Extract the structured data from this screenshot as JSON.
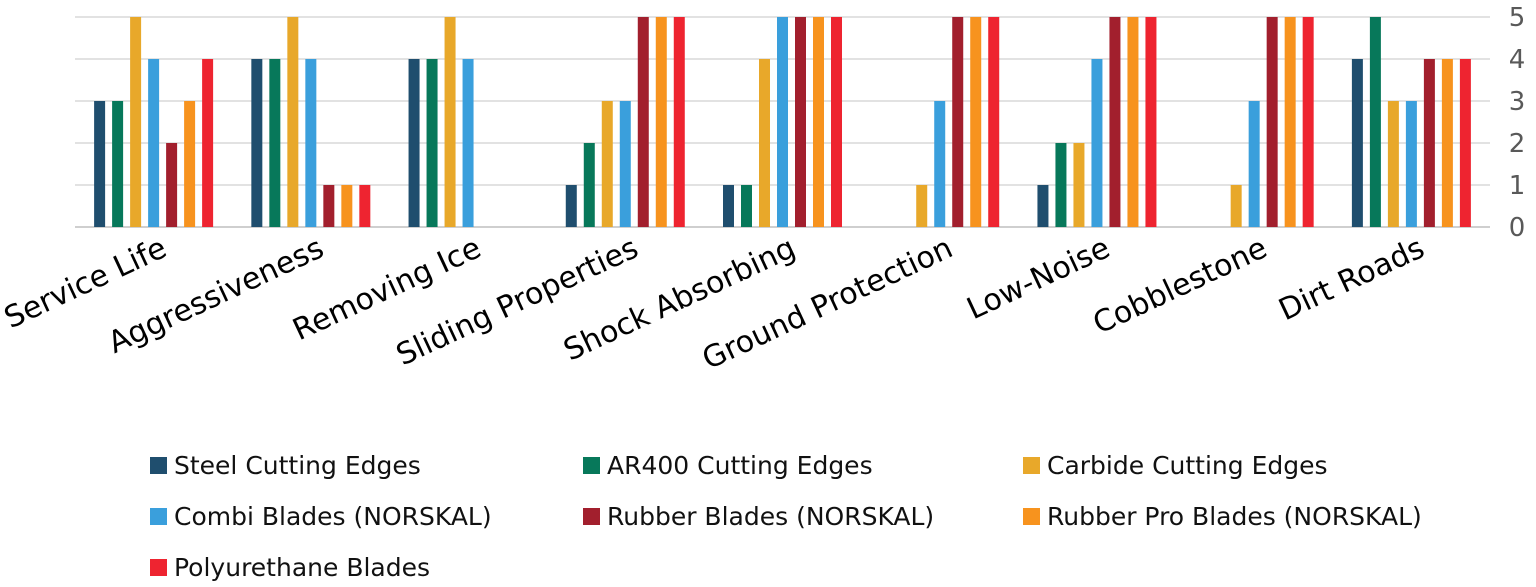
{
  "chart_data": {
    "type": "bar",
    "title": "",
    "xlabel": "",
    "ylabel": "",
    "ylim": [
      0,
      5
    ],
    "yticks": [
      "0",
      "1",
      "2",
      "3",
      "4",
      "5"
    ],
    "y_axis_side": "right",
    "grid": true,
    "legend_position": "bottom",
    "categories": [
      "Service Life",
      "Aggressiveness",
      "Removing Ice",
      "Sliding Properties",
      "Shock Absorbing",
      "Ground Protection",
      "Low-Noise",
      "Cobblestone",
      "Dirt Roads"
    ],
    "series": [
      {
        "name": "Steel Cutting Edges",
        "color": "#1f4e6e",
        "values": [
          3,
          4,
          4,
          1,
          1,
          0,
          1,
          0,
          4
        ]
      },
      {
        "name": "AR400 Cutting Edges",
        "color": "#07785a",
        "values": [
          3,
          4,
          4,
          2,
          1,
          0,
          2,
          0,
          5
        ]
      },
      {
        "name": "Carbide Cutting Edges",
        "color": "#e8a82a",
        "values": [
          5,
          5,
          5,
          3,
          4,
          1,
          2,
          1,
          3
        ]
      },
      {
        "name": "Combi Blades (NORSKAL)",
        "color": "#3a9fdc",
        "values": [
          4,
          4,
          4,
          3,
          5,
          3,
          4,
          3,
          3
        ]
      },
      {
        "name": "Rubber Blades (NORSKAL)",
        "color": "#a21f2d",
        "values": [
          2,
          1,
          0,
          5,
          5,
          5,
          5,
          5,
          4
        ]
      },
      {
        "name": "Rubber Pro Blades (NORSKAL)",
        "color": "#f7931e",
        "values": [
          3,
          1,
          0,
          5,
          5,
          5,
          5,
          5,
          4
        ]
      },
      {
        "name": "Polyurethane Blades",
        "color": "#ee2430",
        "values": [
          4,
          1,
          0,
          5,
          5,
          5,
          5,
          5,
          4
        ]
      }
    ]
  }
}
